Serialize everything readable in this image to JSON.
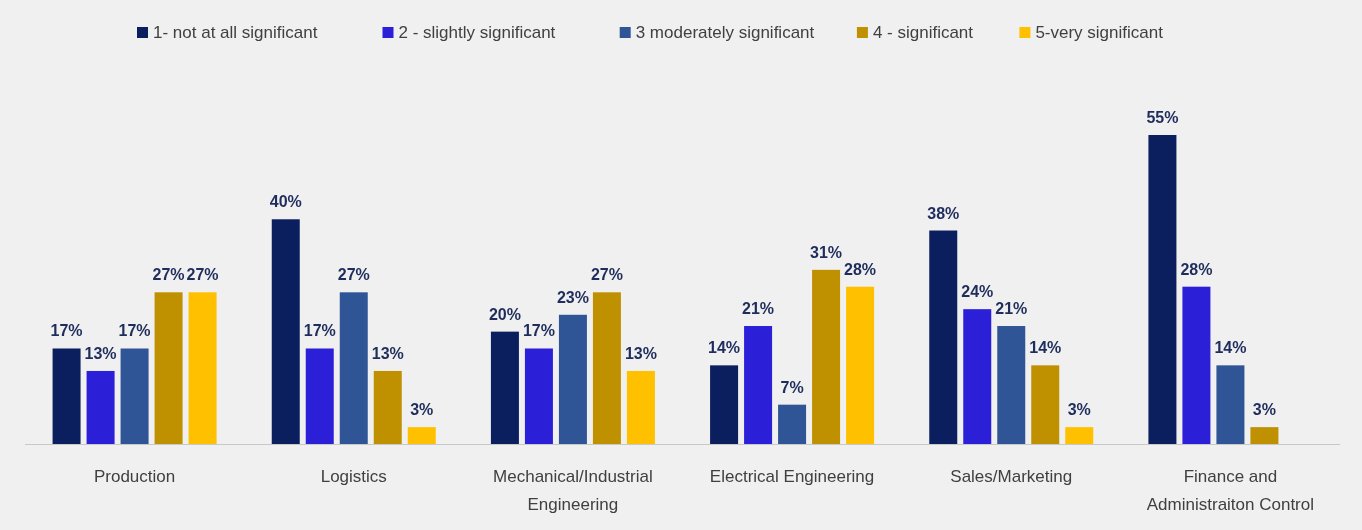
{
  "chart_data": {
    "type": "bar",
    "categories": [
      "Production",
      "Logistics",
      "Mechanical/Industrial Engineering",
      "Electrical Engineering",
      "Sales/Marketing",
      "Finance and Administraiton Control"
    ],
    "series": [
      {
        "name": "1- not at all significant",
        "color": "#0b1f5e",
        "values": [
          17,
          40,
          20,
          14,
          38,
          55
        ],
        "value_labels": [
          "17%",
          "40%",
          "20%",
          "14%",
          "38%",
          "55%"
        ]
      },
      {
        "name": "2 - slightly significant",
        "color": "#2b1fd8",
        "values": [
          13,
          17,
          17,
          21,
          24,
          28
        ],
        "value_labels": [
          "13%",
          "17%",
          "17%",
          "21%",
          "24%",
          "28%"
        ]
      },
      {
        "name": "3 moderately significant",
        "color": "#2f5597",
        "values": [
          17,
          27,
          23,
          7,
          21,
          14
        ],
        "value_labels": [
          "17%",
          "27%",
          "23%",
          "7%",
          "21%",
          "14%"
        ]
      },
      {
        "name": "4 - significant",
        "color": "#bf9000",
        "values": [
          27,
          13,
          27,
          31,
          14,
          3
        ],
        "value_labels": [
          "27%",
          "13%",
          "27%",
          "31%",
          "14%",
          "3%"
        ]
      },
      {
        "name": "5-very significant",
        "color": "#ffc000",
        "values": [
          27,
          3,
          13,
          28,
          3,
          null
        ],
        "value_labels": [
          "27%",
          "3%",
          "13%",
          "28%",
          "3%",
          null
        ]
      }
    ],
    "legend": "top"
  }
}
